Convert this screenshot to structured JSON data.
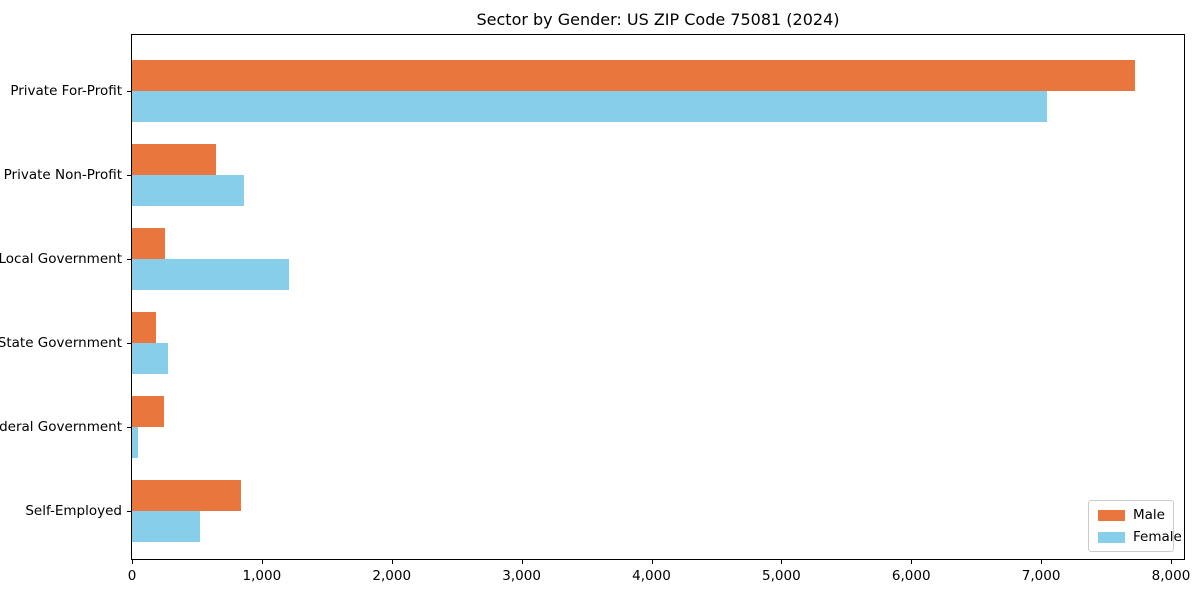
{
  "chart_data": {
    "type": "bar",
    "orientation": "horizontal",
    "title": "Sector by Gender: US ZIP Code 75081 (2024)",
    "xlabel": "",
    "ylabel": "",
    "categories": [
      "Private For-Profit",
      "Private Non-Profit",
      "Local Government",
      "State Government",
      "Federal Government",
      "Self-Employed"
    ],
    "series": [
      {
        "name": "Male",
        "color": "#e8763d",
        "values": [
          7723,
          650,
          257,
          187,
          249,
          840
        ]
      },
      {
        "name": "Female",
        "color": "#87ceeb",
        "values": [
          7045,
          860,
          1205,
          280,
          48,
          524
        ]
      }
    ],
    "xlim": [
      0,
      8100
    ],
    "x_ticks": [
      0,
      1000,
      2000,
      3000,
      4000,
      5000,
      6000,
      7000,
      8000
    ],
    "x_tick_labels": [
      "0",
      "1,000",
      "2,000",
      "3,000",
      "4,000",
      "5,000",
      "6,000",
      "7,000",
      "8,000"
    ],
    "grid": false,
    "legend": {
      "position": "lower right"
    }
  }
}
